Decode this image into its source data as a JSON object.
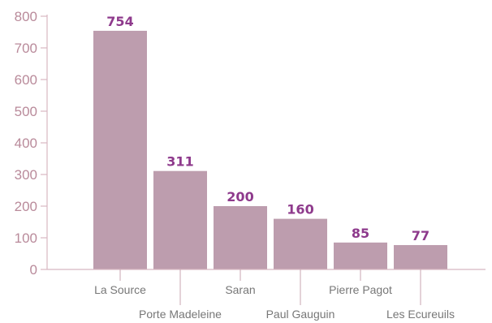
{
  "chart_data": {
    "type": "bar",
    "categories": [
      "La Source",
      "Porte Madeleine",
      "Saran",
      "Paul Gauguin",
      "Pierre Pagot",
      "Les Ecureuils"
    ],
    "values": [
      754,
      311,
      200,
      160,
      85,
      77
    ],
    "data_labels": [
      "754",
      "311",
      "200",
      "160",
      "85",
      "77"
    ],
    "ylim": [
      0,
      800
    ],
    "yticks": [
      0,
      100,
      200,
      300,
      400,
      500,
      600,
      700,
      800
    ],
    "ytick_labels": [
      "0",
      "100",
      "200",
      "300",
      "400",
      "500",
      "600",
      "700",
      "800"
    ],
    "grid": false,
    "legend": "none",
    "colors": {
      "bar": "#bd9dae",
      "axis": "#d8b7c2",
      "tick_text": "#b98a9a",
      "value_text": "#8e3a8c",
      "category_text": "#777777"
    }
  }
}
